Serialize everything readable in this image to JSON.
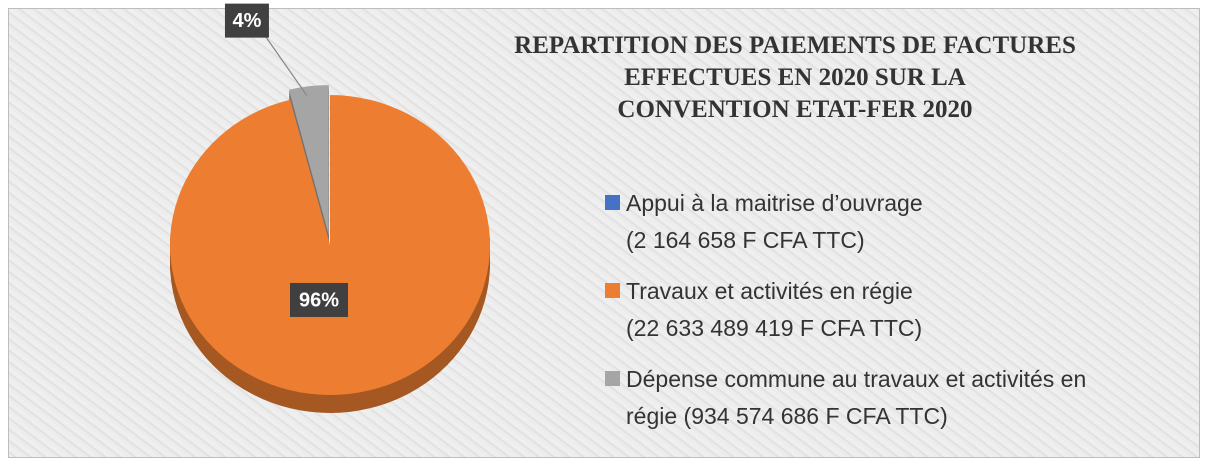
{
  "chart_data": {
    "type": "pie",
    "title": "REPARTITION DES PAIEMENTS DE FACTURES\nEFFECTUES EN 2020 SUR LA\nCONVENTION ETAT-FER 2020",
    "categories": [
      "Appui à la maitrise d’ouvrage\n(2 164 658 F CFA TTC)",
      "Travaux et activités en régie\n(22 633 489 419 F CFA TTC)",
      "Dépense commune au travaux et activités en\nrégie (934 574 686 F CFA TTC)"
    ],
    "values": [
      0.01,
      96,
      4
    ],
    "value_labels": [
      null,
      "96%",
      "4%"
    ],
    "colors": [
      "#4472c4",
      "#ed7d31",
      "#a5a5a5"
    ],
    "legend": "right"
  }
}
